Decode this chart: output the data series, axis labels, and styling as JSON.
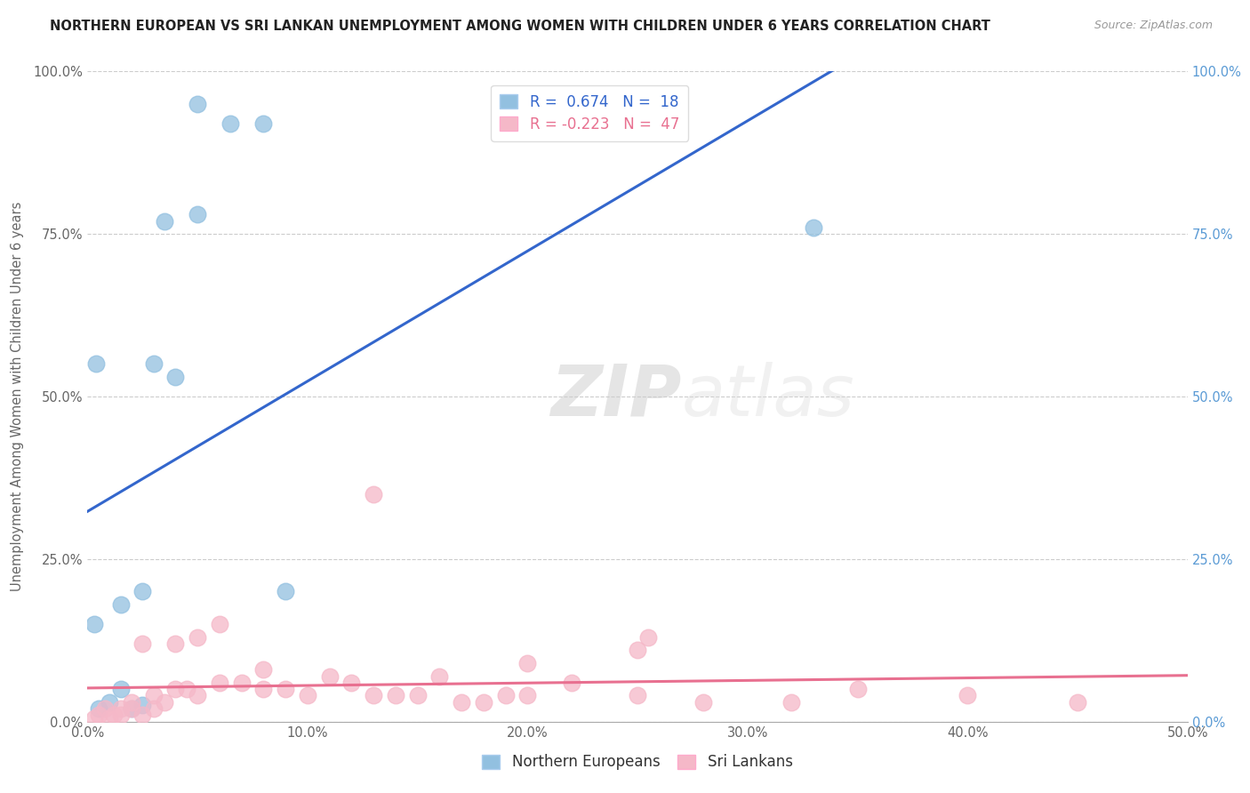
{
  "title": "NORTHERN EUROPEAN VS SRI LANKAN UNEMPLOYMENT AMONG WOMEN WITH CHILDREN UNDER 6 YEARS CORRELATION CHART",
  "source": "Source: ZipAtlas.com",
  "xlabel_ticks": [
    "0.0%",
    "10.0%",
    "20.0%",
    "30.0%",
    "40.0%",
    "50.0%"
  ],
  "ylabel_ticks": [
    "0.0%",
    "25.0%",
    "50.0%",
    "75.0%",
    "100.0%"
  ],
  "xlabel_values": [
    0,
    10,
    20,
    30,
    40,
    50
  ],
  "ylabel_values": [
    0,
    25,
    50,
    75,
    100
  ],
  "xlim": [
    0,
    50
  ],
  "ylim": [
    0,
    100
  ],
  "legend_label_1": "Northern Europeans",
  "legend_label_2": "Sri Lankans",
  "r1": "0.674",
  "n1": "18",
  "r2": "-0.223",
  "n2": "47",
  "color_blue": "#92C0E0",
  "color_pink": "#F5B8C8",
  "line_blue": "#3366CC",
  "line_pink": "#E87090",
  "watermark_zip": "ZIP",
  "watermark_atlas": "atlas",
  "ylabel": "Unemployment Among Women with Children Under 6 years",
  "northern_europeans_x": [
    0.5,
    1.0,
    1.5,
    1.5,
    2.0,
    2.5,
    2.5,
    3.0,
    3.5,
    4.0,
    5.0,
    5.0,
    6.5,
    8.0,
    9.0,
    33.0,
    0.3,
    0.4
  ],
  "northern_europeans_y": [
    2.0,
    3.0,
    5.0,
    18.0,
    2.0,
    2.5,
    20.0,
    55.0,
    77.0,
    53.0,
    78.0,
    95.0,
    92.0,
    92.0,
    20.0,
    76.0,
    15.0,
    55.0
  ],
  "sri_lankans_x": [
    0.3,
    0.5,
    0.8,
    1.0,
    1.2,
    1.5,
    1.5,
    2.0,
    2.0,
    2.5,
    2.5,
    3.0,
    3.0,
    3.5,
    4.0,
    4.0,
    4.5,
    5.0,
    5.0,
    6.0,
    6.0,
    7.0,
    8.0,
    8.0,
    9.0,
    10.0,
    11.0,
    12.0,
    13.0,
    14.0,
    15.0,
    16.0,
    17.0,
    18.0,
    19.0,
    20.0,
    22.0,
    25.0,
    28.0,
    32.0,
    35.0,
    40.0,
    45.0,
    20.0,
    25.0,
    13.0,
    25.5
  ],
  "sri_lankans_y": [
    0.5,
    1.0,
    2.0,
    0.5,
    1.0,
    2.0,
    1.0,
    2.0,
    3.0,
    1.0,
    12.0,
    2.0,
    4.0,
    3.0,
    5.0,
    12.0,
    5.0,
    4.0,
    13.0,
    6.0,
    15.0,
    6.0,
    5.0,
    8.0,
    5.0,
    4.0,
    7.0,
    6.0,
    4.0,
    4.0,
    4.0,
    7.0,
    3.0,
    3.0,
    4.0,
    4.0,
    6.0,
    4.0,
    3.0,
    3.0,
    5.0,
    4.0,
    3.0,
    9.0,
    11.0,
    35.0,
    13.0
  ],
  "background_color": "#FFFFFF",
  "grid_color": "#CCCCCC",
  "left_tick_color": "#666666",
  "right_tick_color": "#5B9BD5",
  "bottom_tick_color": "#666666"
}
